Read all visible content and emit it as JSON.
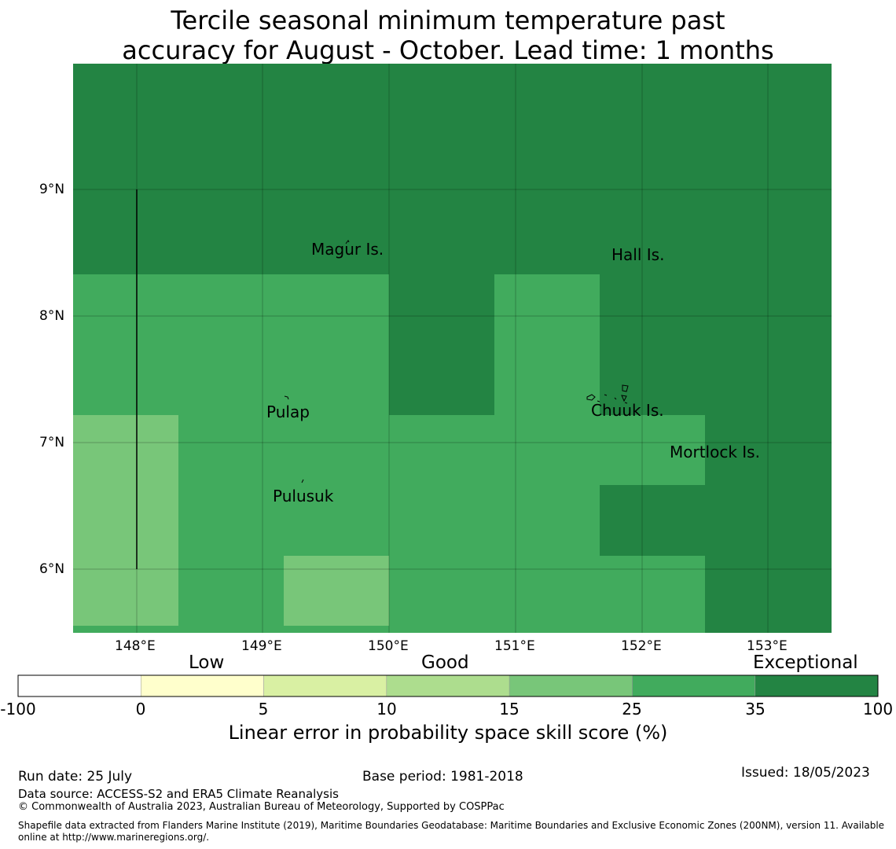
{
  "title_line1": "Tercile seasonal minimum temperature past",
  "title_line2": "accuracy for August - October. Lead time: 1 months",
  "map": {
    "lon_range": [
      147.5,
      153.5
    ],
    "lat_range": [
      5.5,
      10.0
    ],
    "lon_ticks": [
      "148°E",
      "149°E",
      "150°E",
      "151°E",
      "152°E",
      "153°E"
    ],
    "lat_ticks": [
      "9°N",
      "8°N",
      "7°N",
      "6°N"
    ],
    "places": [
      {
        "name": "Magur Is.",
        "lon": 149.35,
        "lat": 8.5
      },
      {
        "name": "Hall Is.",
        "lon": 151.75,
        "lat": 8.45
      },
      {
        "name": "Pulap",
        "lon": 149.03,
        "lat": 7.22
      },
      {
        "name": "Chuuk Is.",
        "lon": 151.6,
        "lat": 7.25
      },
      {
        "name": "Mortlock Is.",
        "lon": 152.22,
        "lat": 6.92
      },
      {
        "name": "Pulusuk",
        "lon": 149.08,
        "lat": 6.56
      }
    ]
  },
  "colorbar": {
    "categories": [
      "Low",
      "Good",
      "Exceptional"
    ],
    "ticks": [
      "-100",
      "0",
      "5",
      "10",
      "15",
      "25",
      "35",
      "100"
    ],
    "colors": [
      "#ffffff",
      "#ffffcc",
      "#d9f0a3",
      "#addd8e",
      "#78c679",
      "#41ab5d",
      "#238443"
    ],
    "label": "Linear error in probability space skill score (%)"
  },
  "footer": {
    "run_date": "Run date: 25 July",
    "base_period": "Base period: 1981-2018",
    "issued": "Issued: 18/05/2023",
    "data_source": "Data source: ACCESS-S2 and ERA5 Climate Reanalysis",
    "copyright": "© Commonwealth of Australia 2023, Australian Bureau of Meteorology, Supported by COSPPac",
    "shapefile_line1": "Shapefile data extracted from Flanders Marine Institute (2019), Maritime Boundaries Geodatabase: Maritime Boundaries and Exclusive Economic Zones (200NM), version 11. Available",
    "shapefile_line2": "online at http://www.marineregions.org/."
  }
}
